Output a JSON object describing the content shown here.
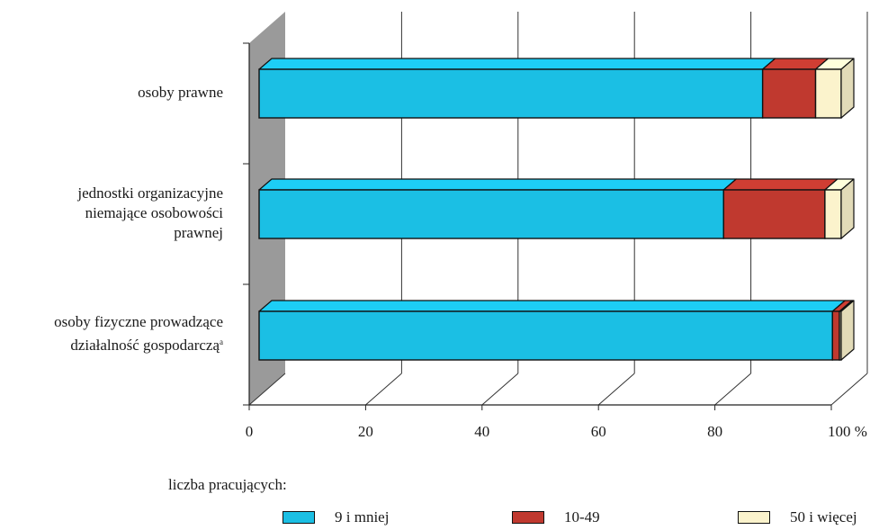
{
  "chart_data": {
    "type": "bar",
    "orientation": "horizontal",
    "stacked": true,
    "percent_stacked": true,
    "categories": [
      "osoby prawne",
      "jednostki organizacyjne\nniemające osobowości\nprawnej",
      "osoby fizyczne prowadzące\ndziałalność gospodarczą"
    ],
    "category_footnote_marks": [
      "",
      "",
      "a"
    ],
    "series": [
      {
        "name": "9 i mniej",
        "values": [
          86.5,
          79.8,
          98.5
        ],
        "color": "#1bbfe4"
      },
      {
        "name": "10-49",
        "values": [
          9.1,
          17.4,
          1.2
        ],
        "color": "#c0392f"
      },
      {
        "name": "50 i więcej",
        "values": [
          4.4,
          2.8,
          0.3
        ],
        "color": "#fbf3cc"
      }
    ],
    "xlim": [
      0,
      100
    ],
    "xticks": [
      "0",
      "20",
      "40",
      "60",
      "80",
      "100 %"
    ],
    "grid": true,
    "style": "3d",
    "legend_title": "liczba pracujących:",
    "legend_position": "bottom"
  }
}
